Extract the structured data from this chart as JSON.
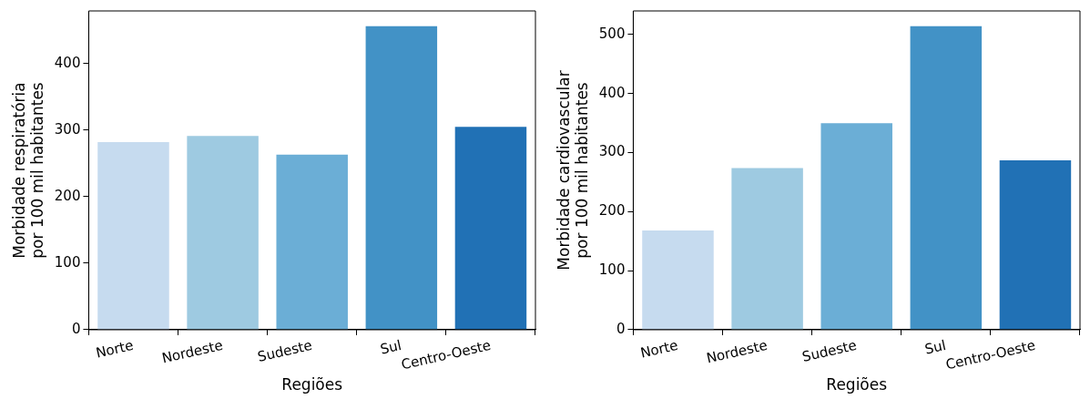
{
  "chart_data": [
    {
      "type": "bar",
      "xlabel": "Regiões",
      "ylabel": "Morbidade respiratória\npor 100 mil habitantes",
      "categories": [
        "Norte",
        "Nordeste",
        "Sudeste",
        "Sul",
        "Centro-Oeste"
      ],
      "values": [
        282,
        291,
        263,
        456,
        305
      ],
      "colors": [
        "#c6dbef",
        "#9ecae1",
        "#6baed6",
        "#4292c6",
        "#2171b5"
      ],
      "ylim": [
        0,
        479
      ],
      "yticks": [
        0,
        100,
        200,
        300,
        400
      ],
      "grid": false,
      "legend": false
    },
    {
      "type": "bar",
      "xlabel": "Regiões",
      "ylabel": "Morbidade cardiovascular\npor 100 mil habitantes",
      "categories": [
        "Norte",
        "Nordeste",
        "Sudeste",
        "Sul",
        "Centro-Oeste"
      ],
      "values": [
        168,
        274,
        350,
        514,
        287
      ],
      "colors": [
        "#c6dbef",
        "#9ecae1",
        "#6baed6",
        "#4292c6",
        "#2171b5"
      ],
      "ylim": [
        0,
        540
      ],
      "yticks": [
        0,
        100,
        200,
        300,
        400,
        500
      ],
      "grid": false,
      "legend": false
    }
  ]
}
